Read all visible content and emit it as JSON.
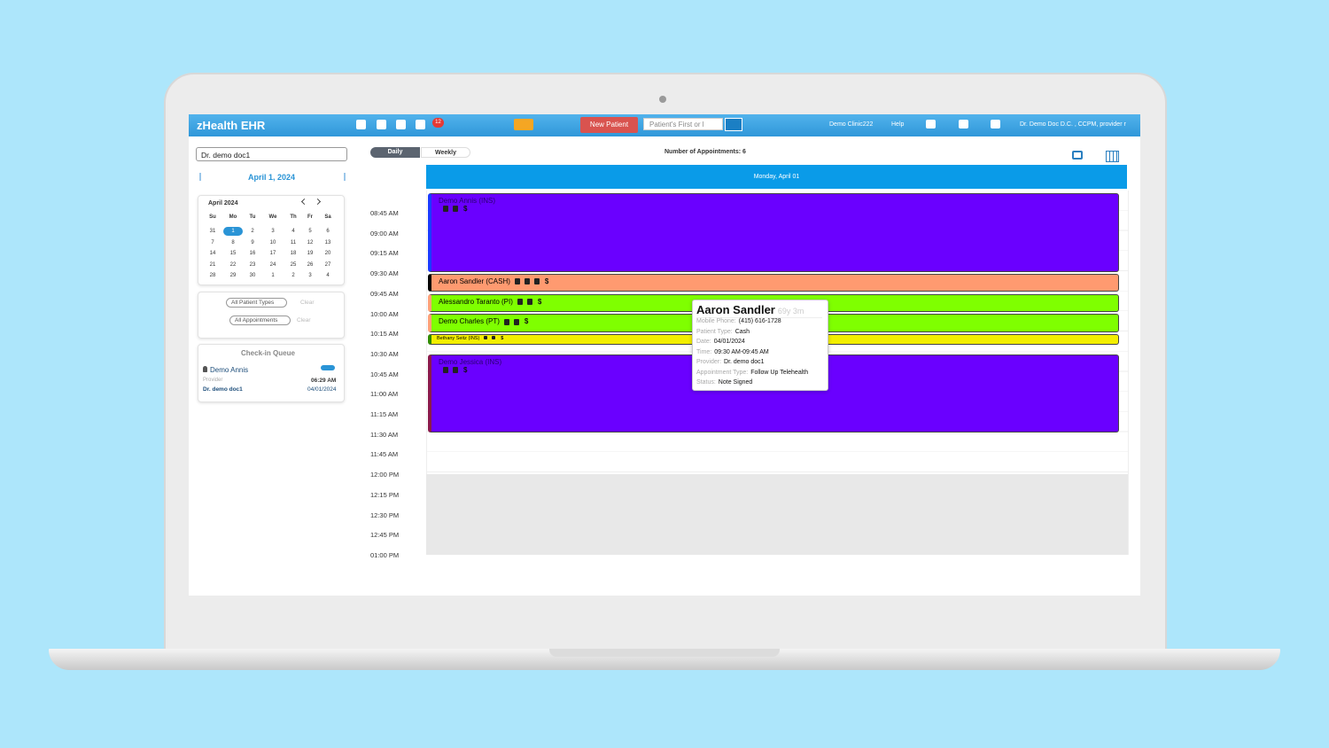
{
  "header": {
    "brand": "zHealth EHR",
    "badge": "12",
    "new_patient": "New Patient",
    "search_placeholder": "Patient's First or l",
    "clinic": "Demo Clinic222",
    "help": "Help",
    "user": "Dr. Demo Doc D.C. , CCPM, provider r"
  },
  "sidebar": {
    "provider": "Dr. demo doc1",
    "date": "April 1, 2024",
    "calendar": {
      "month": "April 2024",
      "weekdays": [
        "Su",
        "Mo",
        "Tu",
        "We",
        "Th",
        "Fr",
        "Sa"
      ],
      "weeks": [
        [
          "31",
          "1",
          "2",
          "3",
          "4",
          "5",
          "6"
        ],
        [
          "7",
          "8",
          "9",
          "10",
          "11",
          "12",
          "13"
        ],
        [
          "14",
          "15",
          "16",
          "17",
          "18",
          "19",
          "20"
        ],
        [
          "21",
          "22",
          "23",
          "24",
          "25",
          "26",
          "27"
        ],
        [
          "28",
          "29",
          "30",
          "1",
          "2",
          "3",
          "4"
        ]
      ]
    },
    "filters": [
      {
        "label": "All Patient Types",
        "clear": "Clear"
      },
      {
        "label": "All Appointments",
        "clear": "Clear"
      }
    ],
    "checkin": {
      "title": "Check-in Queue",
      "patient": "Demo Annis",
      "provider_label": "Provider",
      "time": "06:29 AM",
      "provider": "Dr. demo doc1",
      "date": "04/01/2024"
    }
  },
  "schedule": {
    "views": [
      "Daily",
      "Weekly"
    ],
    "count": "Number of Appointments: 6",
    "day": "Monday, April 01",
    "billing_symbol": "$",
    "times": [
      "08:45 AM",
      "09:00 AM",
      "09:15 AM",
      "09:30 AM",
      "09:45 AM",
      "10:00 AM",
      "10:15 AM",
      "10:30 AM",
      "10:45 AM",
      "11:00 AM",
      "11:15 AM",
      "11:30 AM",
      "11:45 AM",
      "12:00 PM",
      "12:15 PM",
      "12:30 PM",
      "12:45 PM",
      "01:00 PM"
    ],
    "appointments": [
      {
        "name": "Demo Annis (INS)",
        "color": "#6a00ff"
      },
      {
        "name": "Aaron Sandler (CASH)",
        "color": "#ff9a70"
      },
      {
        "name": "Alessandro Taranto (PI)",
        "color": "#7fff00"
      },
      {
        "name": "Demo Charles (PT)",
        "color": "#7fff00"
      },
      {
        "name": "Bethany Seitz (INS)",
        "color": "#f2ee00"
      },
      {
        "name": "Demo Jessica (INS)",
        "color": "#6a00ff"
      }
    ]
  },
  "tooltip": {
    "name": "Aaron Sandler",
    "age": "69y 3m",
    "rows": [
      [
        "Mobile Phone:",
        "(415) 616-1728"
      ],
      [
        "Patient Type:",
        "Cash"
      ],
      [
        "Date:",
        "04/01/2024"
      ],
      [
        "Time:",
        "09:30 AM-09:45 AM"
      ],
      [
        "Provider:",
        "Dr. demo doc1"
      ],
      [
        "Appointment Type:",
        "Follow Up Telehealth"
      ],
      [
        "Status:",
        "Note Signed"
      ]
    ]
  }
}
